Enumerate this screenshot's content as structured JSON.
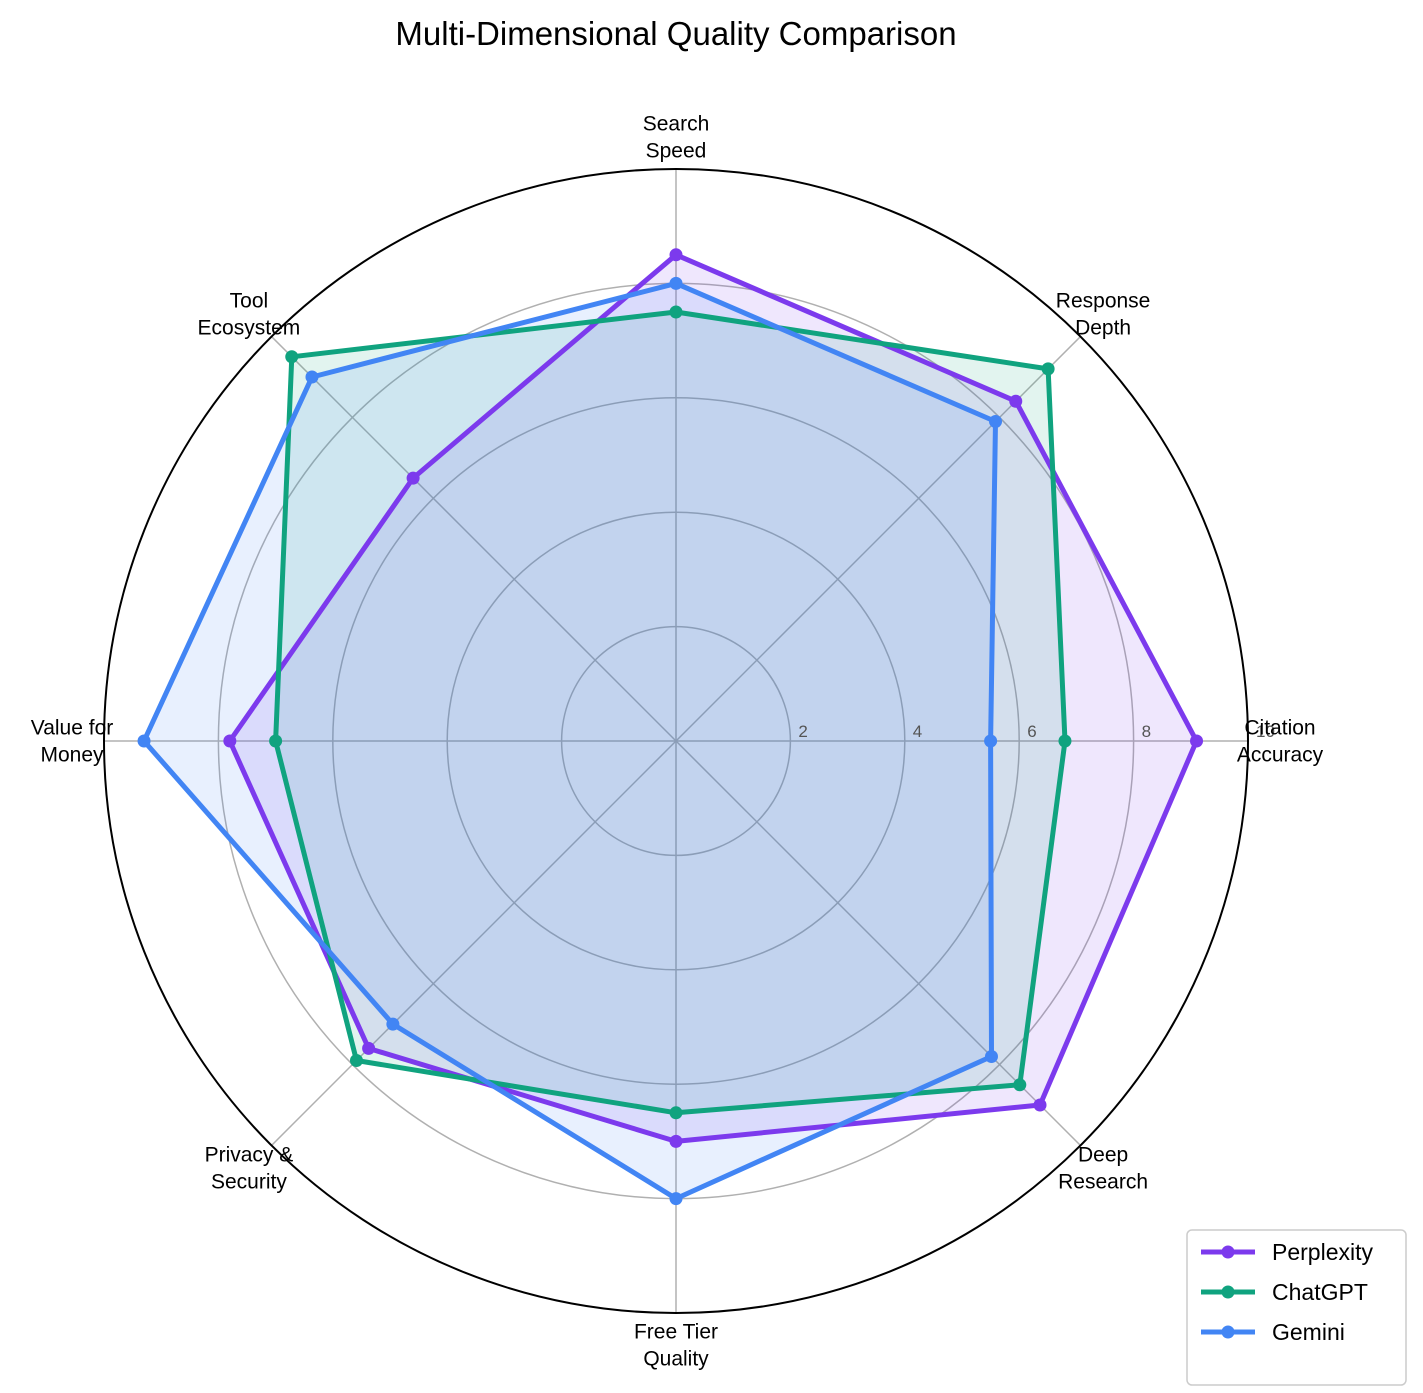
{
  "chart_data": {
    "type": "radar",
    "title": "Multi-Dimensional Quality Comparison",
    "categories": [
      [
        "Citation",
        "Accuracy"
      ],
      [
        "Response",
        "Depth"
      ],
      [
        "Search",
        "Speed"
      ],
      [
        "Tool",
        "Ecosystem"
      ],
      [
        "Value for",
        "Money"
      ],
      [
        "Privacy &",
        "Security"
      ],
      [
        "Free Tier",
        "Quality"
      ],
      [
        "Deep",
        "Research"
      ]
    ],
    "rmax": 10,
    "rticks": [
      2,
      4,
      6,
      8,
      10
    ],
    "rtick_labels": [
      "2",
      "4",
      "6",
      "8",
      "10"
    ],
    "grid": true,
    "legend_position": "lower-right",
    "series": [
      {
        "name": "Perplexity",
        "color": "#7c3aed",
        "values": [
          9.1,
          8.4,
          8.5,
          6.5,
          7.8,
          7.6,
          7.0,
          9.0
        ]
      },
      {
        "name": "ChatGPT",
        "color": "#10a37f",
        "values": [
          6.8,
          9.2,
          7.5,
          9.5,
          7.0,
          7.9,
          6.5,
          8.5
        ]
      },
      {
        "name": "Gemini",
        "color": "#4285f4",
        "values": [
          5.5,
          7.9,
          8.0,
          9.0,
          9.3,
          7.0,
          8.0,
          7.8
        ]
      }
    ]
  }
}
